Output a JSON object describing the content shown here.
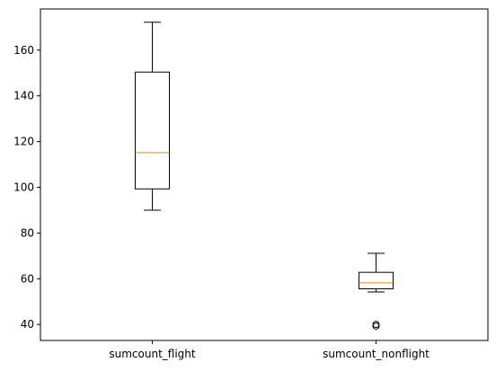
{
  "chart_data": {
    "type": "box",
    "title": "",
    "xlabel": "",
    "ylabel": "",
    "ylim": [
      33,
      178
    ],
    "yticks": [
      40,
      60,
      80,
      100,
      120,
      140,
      160
    ],
    "grid": false,
    "categories": [
      "sumcount_flight",
      "sumcount_nonflight"
    ],
    "boxes": [
      {
        "label": "sumcount_flight",
        "whisker_low": 90,
        "q1": 99.3,
        "median": 115.2,
        "q3": 150.4,
        "whisker_high": 172.2,
        "outliers": []
      },
      {
        "label": "sumcount_nonflight",
        "whisker_low": 54.2,
        "q1": 55.6,
        "median": 58.2,
        "q3": 62.8,
        "whisker_high": 71.1,
        "outliers": [
          39.3,
          40
        ]
      }
    ],
    "colors": {
      "box": "#000000",
      "median": "#ff7f0e",
      "background": "#ffffff"
    }
  }
}
